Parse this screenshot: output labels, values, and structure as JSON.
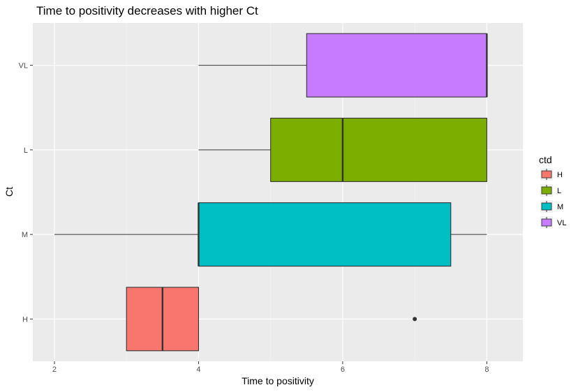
{
  "chart_data": {
    "type": "boxplot",
    "orientation": "horizontal",
    "title": "Time to positivity decreases with higher Ct",
    "xlabel": "Time to positivity",
    "ylabel": "Ct",
    "xlim": [
      1.7,
      8.5
    ],
    "x_ticks": [
      2,
      4,
      6,
      8
    ],
    "categories": [
      "H",
      "M",
      "L",
      "VL"
    ],
    "grid": true,
    "legend": {
      "title": "ctd",
      "position": "right",
      "entries": [
        "H",
        "L",
        "M",
        "VL"
      ]
    },
    "colors": {
      "H": "#F8766D",
      "L": "#7CAE00",
      "M": "#00BFC4",
      "VL": "#C77CFF"
    },
    "series": [
      {
        "name": "H",
        "min": 3,
        "q1": 3,
        "median": 3.5,
        "q3": 4,
        "max": 4,
        "outliers": [
          7
        ]
      },
      {
        "name": "M",
        "min": 2,
        "q1": 4,
        "median": 4,
        "q3": 7.5,
        "max": 8,
        "outliers": []
      },
      {
        "name": "L",
        "min": 4,
        "q1": 5,
        "median": 6,
        "q3": 8,
        "max": 8,
        "outliers": []
      },
      {
        "name": "VL",
        "min": 4,
        "q1": 5.5,
        "median": 8,
        "q3": 8,
        "max": 8,
        "outliers": []
      }
    ]
  }
}
